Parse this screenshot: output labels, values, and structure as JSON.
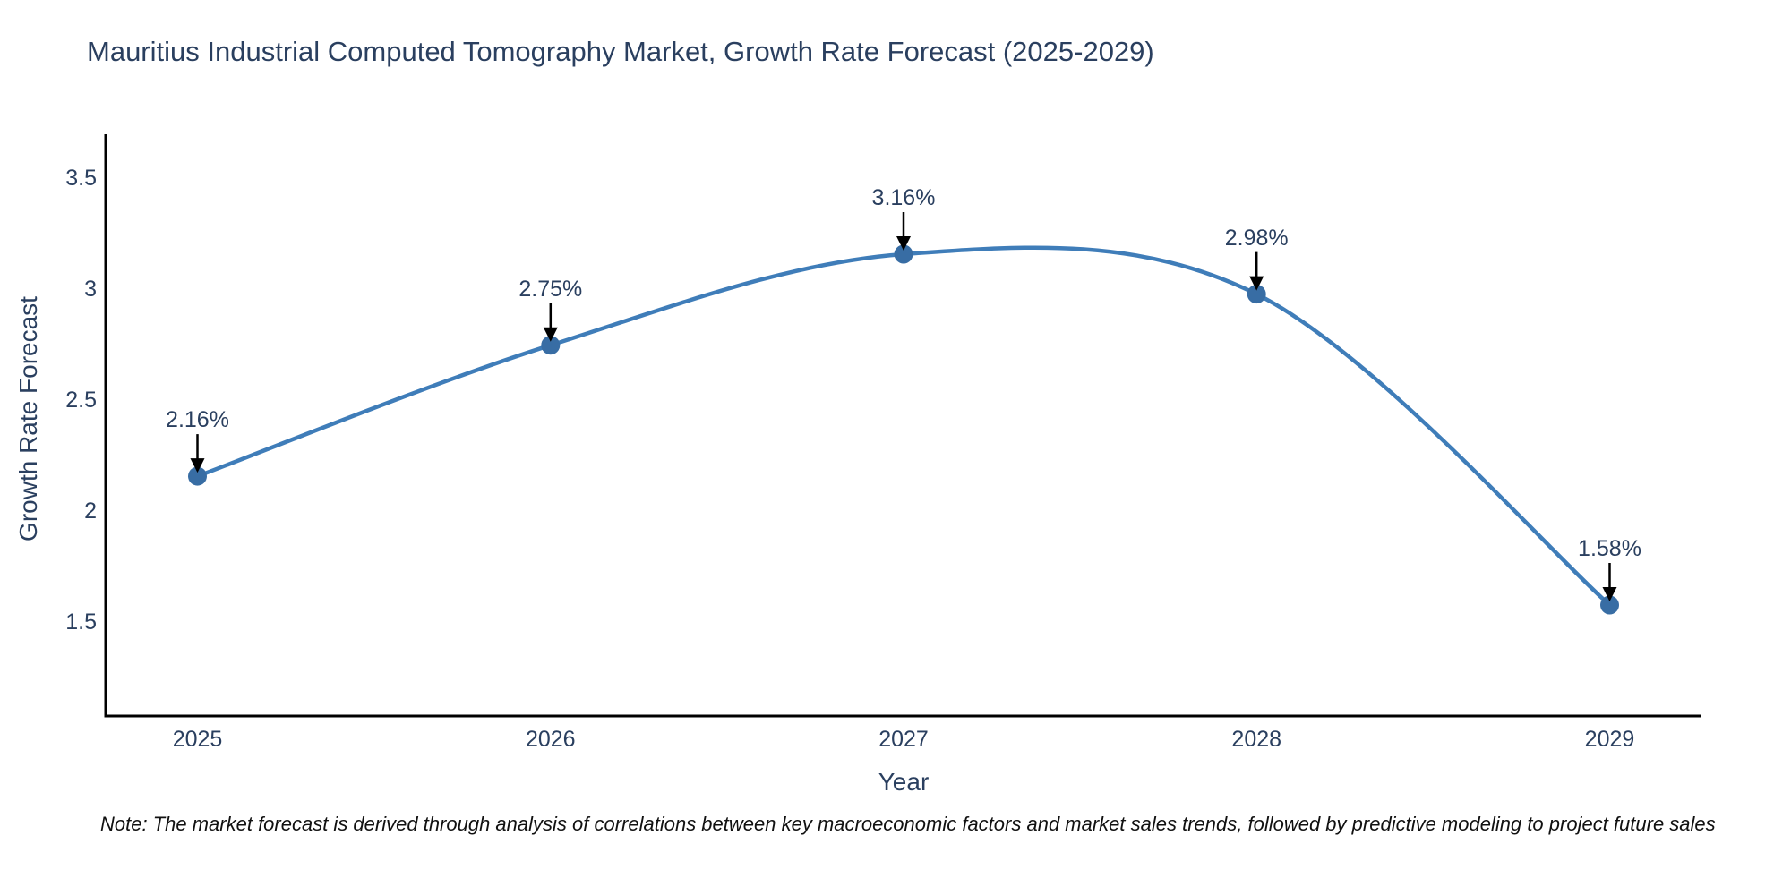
{
  "title": "Mauritius Industrial Computed Tomography Market, Growth Rate Forecast (2025-2029)",
  "note": "Note: The market forecast is derived through analysis of correlations between key macroeconomic factors and market sales trends, followed by predictive modeling to project future sales",
  "colors": {
    "background": "#ffffff",
    "text": "#2a3f5f",
    "line": "#3f7db9",
    "marker": "#386da4",
    "axis": "#000000",
    "arrow": "#000000"
  },
  "chart_data": {
    "type": "line",
    "title": "Mauritius Industrial Computed Tomography Market, Growth Rate Forecast (2025-2029)",
    "x": [
      2025,
      2026,
      2027,
      2028,
      2029
    ],
    "values": [
      2.16,
      2.75,
      3.16,
      2.98,
      1.58
    ],
    "point_labels": [
      "2.16%",
      "2.75%",
      "3.16%",
      "2.98%",
      "1.58%"
    ],
    "xtick_labels": [
      "2025",
      "2026",
      "2027",
      "2028",
      "2029"
    ],
    "yticks": [
      1.5,
      2,
      2.5,
      3,
      3.5
    ],
    "ytick_labels": [
      "1.5",
      "2",
      "2.5",
      "3",
      "3.5"
    ],
    "xlabel": "Year",
    "ylabel": "Growth Rate Forecast",
    "xlim": [
      2024.74,
      2029.26
    ],
    "ylim": [
      1.08,
      3.7
    ],
    "grid": false,
    "legend": "none",
    "line_shape": "spline",
    "annotation_arrows": true
  }
}
